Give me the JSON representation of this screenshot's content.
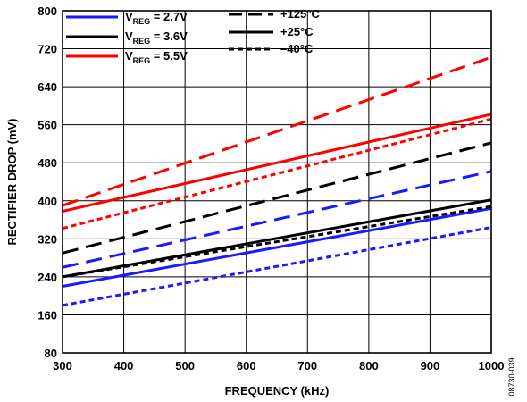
{
  "chart_data": {
    "type": "line",
    "title": "",
    "xlabel": "FREQUENCY (kHz)",
    "ylabel": "RECTIFIER DROP (mV)",
    "xlim": [
      300,
      1000
    ],
    "ylim": [
      80,
      800
    ],
    "x_ticks": [
      "300",
      "400",
      "500",
      "600",
      "700",
      "800",
      "900",
      "1000"
    ],
    "y_ticks": [
      "80",
      "160",
      "240",
      "320",
      "400",
      "480",
      "560",
      "640",
      "720",
      "800"
    ],
    "grid": true,
    "legend_position": "top-left",
    "figure_id": "08730-039",
    "voltage_legend": [
      {
        "label_main": "V",
        "label_sub": "REG",
        "label_rest": " = 2.7V",
        "color": "#1a1aff"
      },
      {
        "label_main": "V",
        "label_sub": "REG",
        "label_rest": " = 3.6V",
        "color": "#000000"
      },
      {
        "label_main": "V",
        "label_sub": "REG",
        "label_rest": " = 5.5V",
        "color": "#ff0000"
      }
    ],
    "temperature_legend": [
      {
        "label": "+125°C",
        "dash": "long-dash"
      },
      {
        "label": "+25°C",
        "dash": "solid"
      },
      {
        "label": "–40°C",
        "dash": "short-dash"
      }
    ],
    "series": [
      {
        "name": "VREG = 2.7V, +125°C",
        "vreg": "2.7V",
        "temp": "+125°C",
        "color": "#1a1aff",
        "dash": "long-dash",
        "x": [
          300,
          1000
        ],
        "y": [
          260,
          462
        ]
      },
      {
        "name": "VREG = 2.7V, +25°C",
        "vreg": "2.7V",
        "temp": "+25°C",
        "color": "#1a1aff",
        "dash": "solid",
        "x": [
          300,
          1000
        ],
        "y": [
          220,
          384
        ]
      },
      {
        "name": "VREG = 2.7V, –40°C",
        "vreg": "2.7V",
        "temp": "–40°C",
        "color": "#1a1aff",
        "dash": "short-dash",
        "x": [
          300,
          1000
        ],
        "y": [
          180,
          344
        ]
      },
      {
        "name": "VREG = 3.6V, +125°C",
        "vreg": "3.6V",
        "temp": "+125°C",
        "color": "#000000",
        "dash": "long-dash",
        "x": [
          300,
          1000
        ],
        "y": [
          290,
          522
        ]
      },
      {
        "name": "VREG = 3.6V, +25°C",
        "vreg": "3.6V",
        "temp": "+25°C",
        "color": "#000000",
        "dash": "solid",
        "x": [
          300,
          1000
        ],
        "y": [
          240,
          402
        ]
      },
      {
        "name": "VREG = 3.6V, –40°C",
        "vreg": "3.6V",
        "temp": "–40°C",
        "color": "#000000",
        "dash": "short-dash",
        "x": [
          300,
          1000
        ],
        "y": [
          240,
          388
        ]
      },
      {
        "name": "VREG = 5.5V, +125°C",
        "vreg": "5.5V",
        "temp": "+125°C",
        "color": "#ff0000",
        "dash": "long-dash",
        "x": [
          300,
          1000
        ],
        "y": [
          390,
          702
        ]
      },
      {
        "name": "VREG = 5.5V, +25°C",
        "vreg": "5.5V",
        "temp": "+25°C",
        "color": "#ff0000",
        "dash": "solid",
        "x": [
          300,
          1000
        ],
        "y": [
          378,
          582
        ]
      },
      {
        "name": "VREG = 5.5V, –40°C",
        "vreg": "5.5V",
        "temp": "–40°C",
        "color": "#ff0000",
        "dash": "short-dash",
        "x": [
          300,
          1000
        ],
        "y": [
          342,
          572
        ]
      }
    ]
  }
}
